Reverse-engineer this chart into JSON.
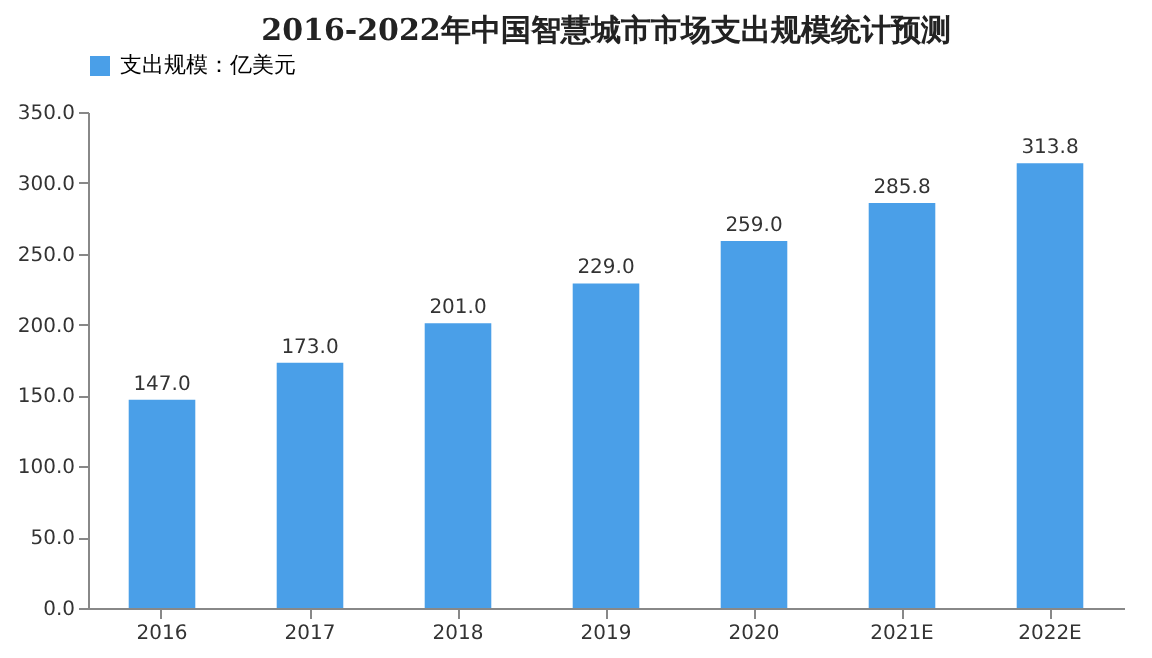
{
  "chart_data": {
    "type": "bar",
    "title": "2016-2022年中国智慧城市市场支出规模统计预测",
    "categories": [
      "2016",
      "2017",
      "2018",
      "2019",
      "2020",
      "2021E",
      "2022E"
    ],
    "series": [
      {
        "name": "支出规模：亿美元",
        "color": "#4a9fe8",
        "values": [
          147.0,
          173.0,
          201.0,
          229.0,
          259.0,
          285.8,
          313.8
        ],
        "value_labels": [
          "147.0",
          "173.0",
          "201.0",
          "229.0",
          "259.0",
          "285.8",
          "313.8"
        ]
      }
    ],
    "ylim": [
      0,
      350
    ],
    "yticks": [
      {
        "value": 0,
        "label": "0.0"
      },
      {
        "value": 50,
        "label": "50.0"
      },
      {
        "value": 100,
        "label": "100.0"
      },
      {
        "value": 150,
        "label": "150.0"
      },
      {
        "value": 200,
        "label": "200.0"
      },
      {
        "value": 250,
        "label": "250.0"
      },
      {
        "value": 300,
        "label": "300.0"
      },
      {
        "value": 350,
        "label": "350.0"
      }
    ],
    "legend": "top",
    "grid": false
  }
}
